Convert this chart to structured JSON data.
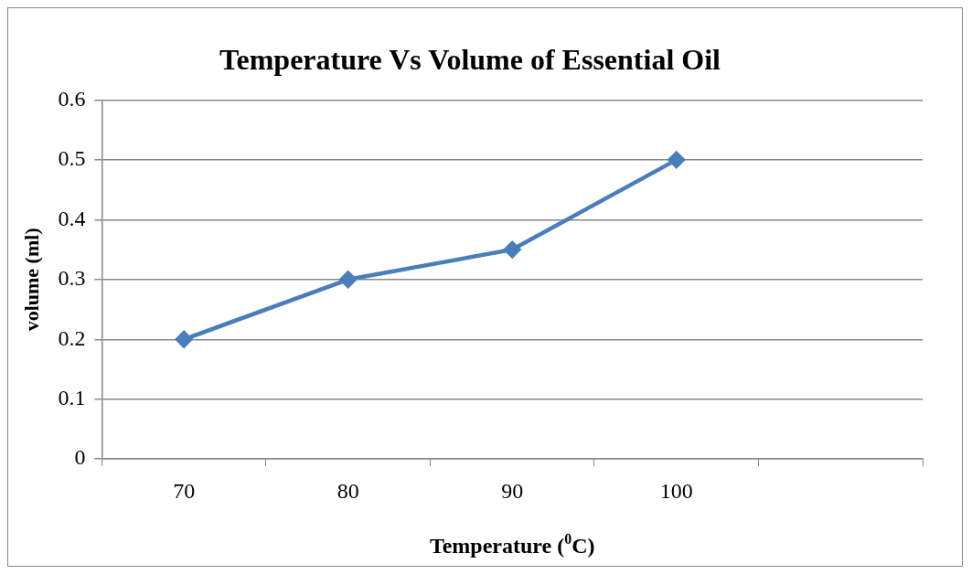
{
  "chart_data": {
    "type": "line",
    "title": "Temperature Vs Volume of Essential Oil",
    "xlabel": "Temperature ($^{0}$C)",
    "ylabel": "volume (ml)",
    "categories": [
      "70",
      "80",
      "90",
      "100",
      null
    ],
    "series": [
      {
        "color": "#4a7ebb",
        "values": [
          0.2,
          0.3,
          0.35,
          0.5,
          null
        ]
      }
    ],
    "ylim": [
      0,
      0.6
    ],
    "yticks": [
      0,
      0.1,
      0.2,
      0.3,
      0.4,
      0.5,
      0.6
    ],
    "grid": "y",
    "legend": false,
    "marker": "diamond",
    "line_style": "solid"
  }
}
